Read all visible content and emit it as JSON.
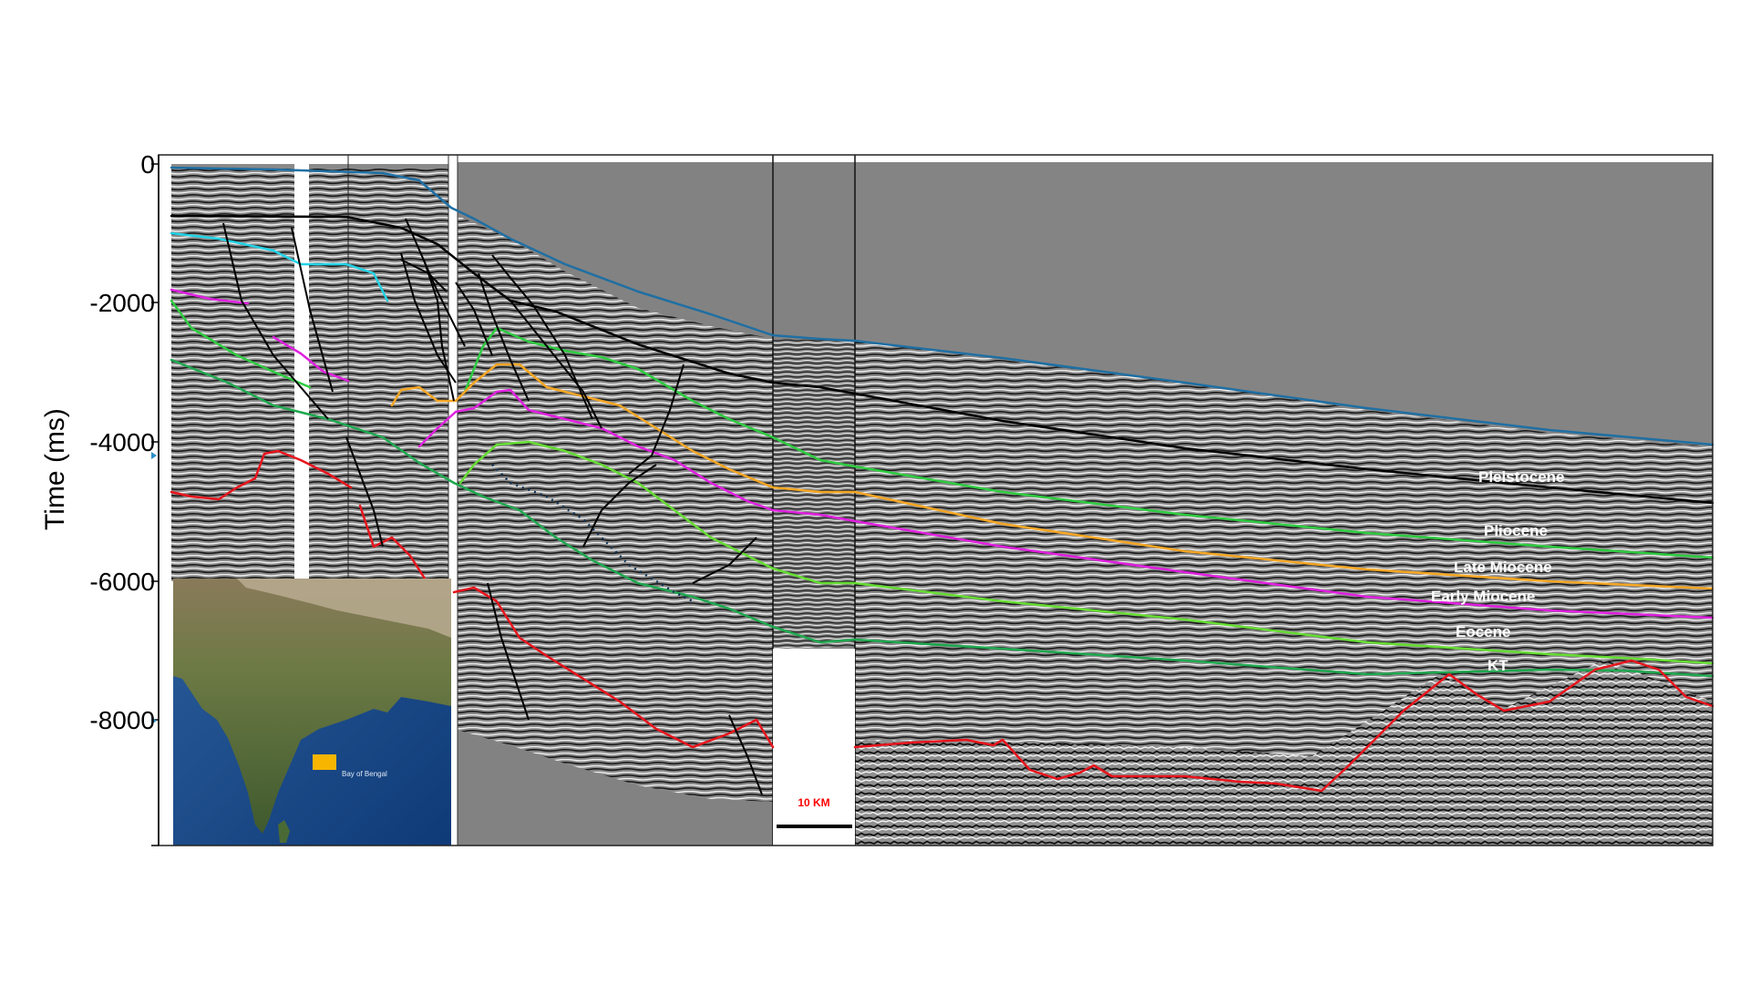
{
  "axis": {
    "title": "Time (ms)",
    "ticks": [
      "0",
      "-2000",
      "-4000",
      "-6000",
      "-8000"
    ]
  },
  "horizons": [
    {
      "key": "pleistocene",
      "label": "Pleistocene",
      "color": "#000000"
    },
    {
      "key": "pliocene",
      "label": "Pliocene",
      "color": "#2ecc40"
    },
    {
      "key": "late_miocene",
      "label": "Late Miocene",
      "color": "#f5a623"
    },
    {
      "key": "early_miocene",
      "label": "Early  Miocene",
      "color": "#e020e0"
    },
    {
      "key": "eocene",
      "label": "Eocene",
      "color": "#66dd33"
    },
    {
      "key": "kt",
      "label": "KT",
      "color": "#1fa84f"
    }
  ],
  "other_lines": {
    "seabed_color": "#1f6fa3",
    "cyan_color": "#22d3e6",
    "basement_color": "#e8141c",
    "fault_color": "#000000"
  },
  "scale_bar": {
    "label": "10 KM"
  },
  "inset_map": {
    "label": "Bay of Bengal",
    "marker_color": "#f7b500"
  }
}
